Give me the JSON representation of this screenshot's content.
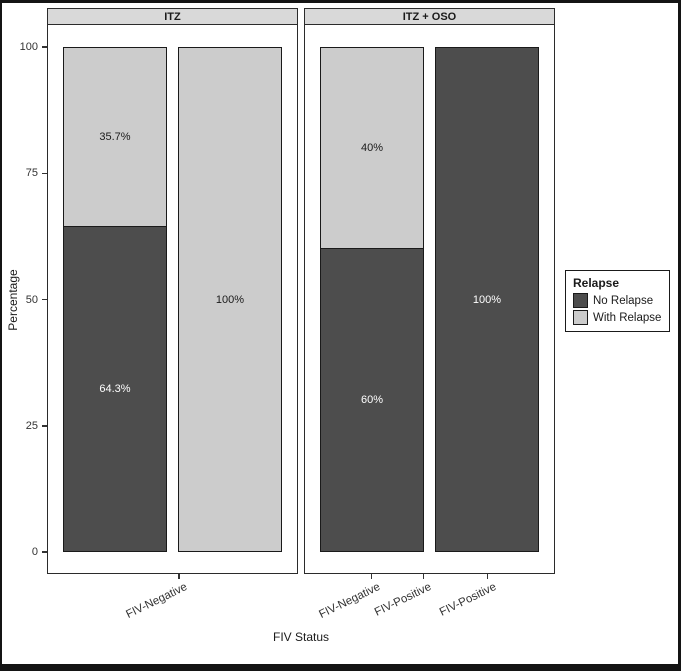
{
  "chart_data": {
    "type": "bar",
    "variant": "stacked-percent",
    "title": "",
    "xlabel": "FIV Status",
    "ylabel": "Percentage",
    "ylim": [
      0,
      100
    ],
    "y_ticks": [
      0,
      25,
      50,
      75,
      100
    ],
    "grid": false,
    "legend": {
      "title": "Relapse",
      "position": "right",
      "entries": [
        {
          "label": "No Relapse",
          "color": "#4D4D4D"
        },
        {
          "label": "With Relapse",
          "color": "#CCCCCC"
        }
      ]
    },
    "facets": [
      {
        "label": "ITZ",
        "categories": [
          "FIV-Negative",
          "FIV-Positive"
        ],
        "bars": [
          {
            "category": "FIV-Negative",
            "segments": [
              {
                "series": "No Relapse",
                "value": 64.3,
                "label": "64.3%",
                "label_color": "#FFFFFF"
              },
              {
                "series": "With Relapse",
                "value": 35.7,
                "label": "35.7%",
                "label_color": "#1a1a1a"
              }
            ]
          },
          {
            "category": "FIV-Positive",
            "segments": [
              {
                "series": "With Relapse",
                "value": 100,
                "label": "100%",
                "label_color": "#1a1a1a"
              }
            ]
          }
        ]
      },
      {
        "label": "ITZ + OSO",
        "categories": [
          "FIV-Negative",
          "FIV-Positive"
        ],
        "bars": [
          {
            "category": "FIV-Negative",
            "segments": [
              {
                "series": "No Relapse",
                "value": 60,
                "label": "60%",
                "label_color": "#FFFFFF"
              },
              {
                "series": "With Relapse",
                "value": 40,
                "label": "40%",
                "label_color": "#1a1a1a"
              }
            ]
          },
          {
            "category": "FIV-Positive",
            "segments": [
              {
                "series": "No Relapse",
                "value": 100,
                "label": "100%",
                "label_color": "#FFFFFF"
              }
            ]
          }
        ]
      }
    ],
    "colors": {
      "bar_outline": "#1a1a1a",
      "panel_border": "#2b2b2b",
      "strip_background": "#D9D9D9",
      "dark_fill": "#4D4D4D",
      "light_fill": "#CCCCCC"
    }
  }
}
